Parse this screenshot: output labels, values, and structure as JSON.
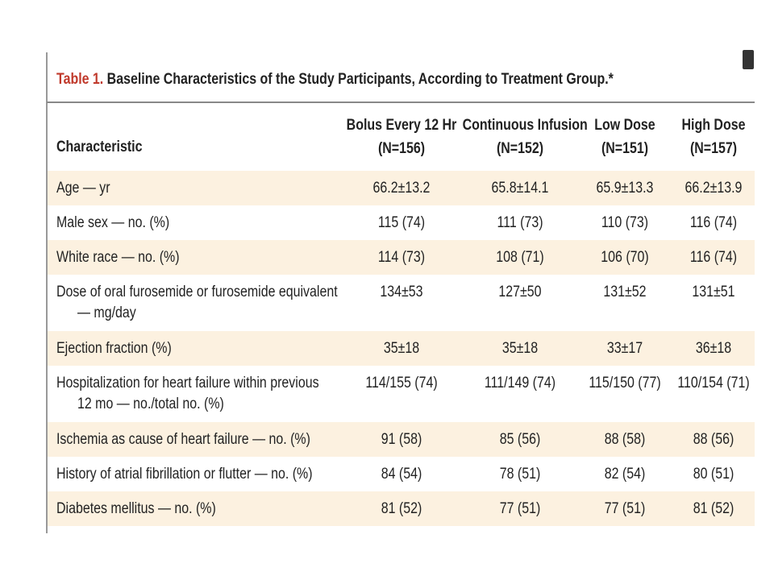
{
  "table": {
    "title_label": "Table 1.",
    "title": "Baseline Characteristics of the Study Participants, According to Treatment Group.*",
    "columns": [
      "Characteristic",
      [
        "Bolus Every 12 Hr",
        "(N=156)"
      ],
      [
        "Continuous Infusion",
        "(N=152)"
      ],
      [
        "Low Dose",
        "(N=151)"
      ],
      [
        "High Dose",
        "(N=157)"
      ]
    ],
    "rows": [
      {
        "label": [
          "Age — yr"
        ],
        "values": [
          "66.2±13.2",
          "65.8±14.1",
          "65.9±13.3",
          "66.2±13.9"
        ]
      },
      {
        "label": [
          "Male sex — no. (%)"
        ],
        "values": [
          "115 (74)",
          "111 (73)",
          "110 (73)",
          "116 (74)"
        ]
      },
      {
        "label": [
          "White race — no. (%)"
        ],
        "values": [
          "114 (73)",
          "108 (71)",
          "106 (70)",
          "116 (74)"
        ]
      },
      {
        "label": [
          "Dose of oral furosemide or furosemide equivalent",
          "— mg/day"
        ],
        "values": [
          "134±53",
          "127±50",
          "131±52",
          "131±51"
        ]
      },
      {
        "label": [
          "Ejection fraction (%)"
        ],
        "values": [
          "35±18",
          "35±18",
          "33±17",
          "36±18"
        ]
      },
      {
        "label": [
          "Hospitalization for heart failure within previous",
          "12 mo — no./total no. (%)"
        ],
        "values": [
          "114/155 (74)",
          "111/149 (74)",
          "115/150 (77)",
          "110/154 (71)"
        ]
      },
      {
        "label": [
          "Ischemia as cause of heart failure — no. (%)"
        ],
        "values": [
          "91 (58)",
          "85 (56)",
          "88 (58)",
          "88 (56)"
        ]
      },
      {
        "label": [
          "History of atrial fibrillation or flutter — no. (%)"
        ],
        "values": [
          "84 (54)",
          "78 (51)",
          "82 (54)",
          "80 (51)"
        ]
      },
      {
        "label": [
          "Diabetes mellitus — no. (%)"
        ],
        "values": [
          "81 (52)",
          "77 (51)",
          "77 (51)",
          "81 (52)"
        ]
      }
    ]
  }
}
